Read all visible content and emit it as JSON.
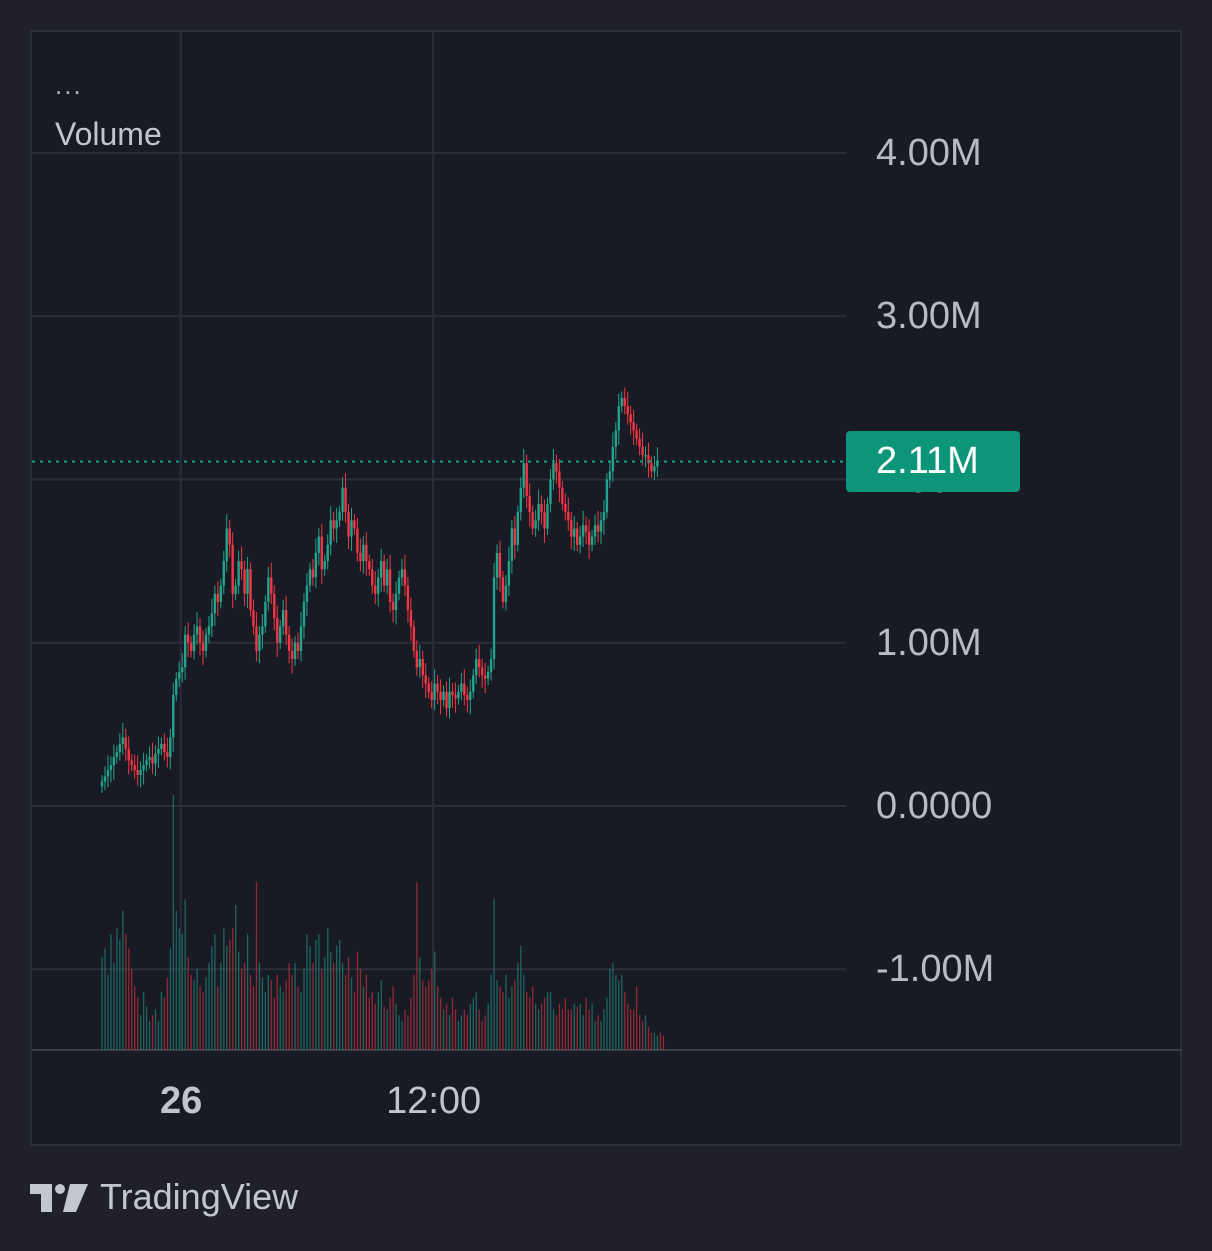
{
  "legend": {
    "menu": "...",
    "title": "Volume"
  },
  "price_tag": {
    "label": "2.11M"
  },
  "watermark": {
    "brand": "TradingView"
  },
  "colors": {
    "up": "#22a58a",
    "down": "#f23645",
    "price_line": "#16a085",
    "tag": "#0d9579",
    "grid": "#2b2d38",
    "background": "#181a24"
  },
  "chart_data": {
    "type": "candlestick",
    "title": "Volume",
    "series_name": "Volume",
    "yticks": [
      "4.00M",
      "3.00M",
      "2.00M",
      "1.00M",
      "0.0000",
      "-1.00M"
    ],
    "ytick_values": [
      4000000,
      3000000,
      2000000,
      1000000,
      0,
      -1000000
    ],
    "xticks": [
      "26",
      "12:00"
    ],
    "xtick_index": [
      27,
      112
    ],
    "ylim": [
      -1500000,
      4750000
    ],
    "last_value": 2110000,
    "last_value_label": "2.11M",
    "grid": true,
    "closes": [
      0.15,
      0.18,
      0.22,
      0.25,
      0.3,
      0.33,
      0.38,
      0.42,
      0.35,
      0.28,
      0.25,
      0.22,
      0.19,
      0.22,
      0.25,
      0.28,
      0.3,
      0.26,
      0.32,
      0.35,
      0.38,
      0.33,
      0.3,
      0.42,
      0.68,
      0.78,
      0.82,
      0.85,
      1.05,
      1.0,
      0.95,
      1.05,
      1.1,
      1.0,
      0.95,
      1.05,
      1.1,
      1.18,
      1.3,
      1.25,
      1.35,
      1.5,
      1.7,
      1.6,
      1.3,
      1.35,
      1.5,
      1.45,
      1.3,
      1.45,
      1.2,
      1.1,
      0.95,
      1.05,
      1.1,
      1.25,
      1.4,
      1.3,
      1.15,
      1.0,
      1.1,
      1.2,
      1.05,
      0.95,
      0.9,
      1.0,
      0.95,
      1.1,
      1.25,
      1.35,
      1.45,
      1.4,
      1.55,
      1.65,
      1.45,
      1.5,
      1.6,
      1.75,
      1.7,
      1.75,
      1.8,
      1.95,
      1.8,
      1.65,
      1.75,
      1.7,
      1.55,
      1.5,
      1.6,
      1.5,
      1.45,
      1.35,
      1.3,
      1.4,
      1.5,
      1.35,
      1.45,
      1.25,
      1.2,
      1.3,
      1.4,
      1.45,
      1.35,
      1.2,
      1.1,
      0.95,
      0.85,
      0.9,
      0.8,
      0.75,
      0.7,
      0.65,
      0.75,
      0.7,
      0.65,
      0.7,
      0.6,
      0.7,
      0.68,
      0.66,
      0.7,
      0.75,
      0.68,
      0.65,
      0.7,
      0.8,
      0.9,
      0.85,
      0.8,
      0.78,
      0.82,
      0.9,
      1.4,
      1.55,
      1.4,
      1.25,
      1.35,
      1.5,
      1.7,
      1.6,
      1.8,
      1.95,
      2.1,
      1.9,
      1.8,
      1.7,
      1.75,
      1.85,
      1.8,
      1.7,
      1.85,
      2.0,
      2.1,
      2.05,
      1.95,
      1.85,
      1.8,
      1.75,
      1.65,
      1.7,
      1.6,
      1.65,
      1.72,
      1.68,
      1.6,
      1.65,
      1.72,
      1.68,
      1.75,
      1.8,
      2.0,
      2.05,
      2.2,
      2.3,
      2.45,
      2.5,
      2.45,
      2.4,
      2.35,
      2.3,
      2.25,
      2.2,
      2.15,
      2.15,
      2.1,
      2.05,
      2.08,
      2.11
    ],
    "volumes": [
      0.32,
      0.35,
      0.26,
      0.4,
      0.3,
      0.42,
      0.38,
      0.48,
      0.4,
      0.35,
      0.28,
      0.22,
      0.18,
      0.12,
      0.2,
      0.15,
      0.1,
      0.12,
      0.14,
      0.1,
      0.2,
      0.18,
      0.25,
      0.35,
      0.88,
      0.48,
      0.42,
      0.4,
      0.52,
      0.32,
      0.26,
      0.24,
      0.28,
      0.22,
      0.2,
      0.25,
      0.3,
      0.36,
      0.4,
      0.22,
      0.3,
      0.42,
      0.36,
      0.38,
      0.42,
      0.5,
      0.34,
      0.28,
      0.3,
      0.4,
      0.26,
      0.22,
      0.58,
      0.3,
      0.25,
      0.2,
      0.26,
      0.24,
      0.18,
      0.26,
      0.22,
      0.2,
      0.24,
      0.3,
      0.26,
      0.3,
      0.22,
      0.2,
      0.28,
      0.4,
      0.36,
      0.3,
      0.38,
      0.4,
      0.28,
      0.32,
      0.42,
      0.34,
      0.3,
      0.36,
      0.38,
      0.3,
      0.26,
      0.32,
      0.25,
      0.2,
      0.34,
      0.28,
      0.22,
      0.26,
      0.18,
      0.2,
      0.16,
      0.2,
      0.24,
      0.15,
      0.14,
      0.18,
      0.22,
      0.16,
      0.12,
      0.1,
      0.14,
      0.12,
      0.18,
      0.26,
      0.58,
      0.32,
      0.24,
      0.22,
      0.24,
      0.28,
      0.34,
      0.22,
      0.18,
      0.14,
      0.16,
      0.12,
      0.18,
      0.14,
      0.1,
      0.12,
      0.14,
      0.12,
      0.16,
      0.18,
      0.2,
      0.14,
      0.1,
      0.12,
      0.16,
      0.26,
      0.52,
      0.24,
      0.22,
      0.2,
      0.26,
      0.18,
      0.22,
      0.24,
      0.3,
      0.36,
      0.26,
      0.2,
      0.18,
      0.22,
      0.16,
      0.14,
      0.16,
      0.18,
      0.2,
      0.2,
      0.14,
      0.12,
      0.16,
      0.14,
      0.18,
      0.14,
      0.14,
      0.16,
      0.15,
      0.16,
      0.12,
      0.18,
      0.14,
      0.16,
      0.1,
      0.12,
      0.1,
      0.14,
      0.18,
      0.28,
      0.3,
      0.26,
      0.24,
      0.26,
      0.2,
      0.16,
      0.14,
      0.14,
      0.22,
      0.12,
      0.1,
      0.12,
      0.08,
      0.06,
      0.06,
      0.05,
      0.06,
      0.05
    ]
  }
}
